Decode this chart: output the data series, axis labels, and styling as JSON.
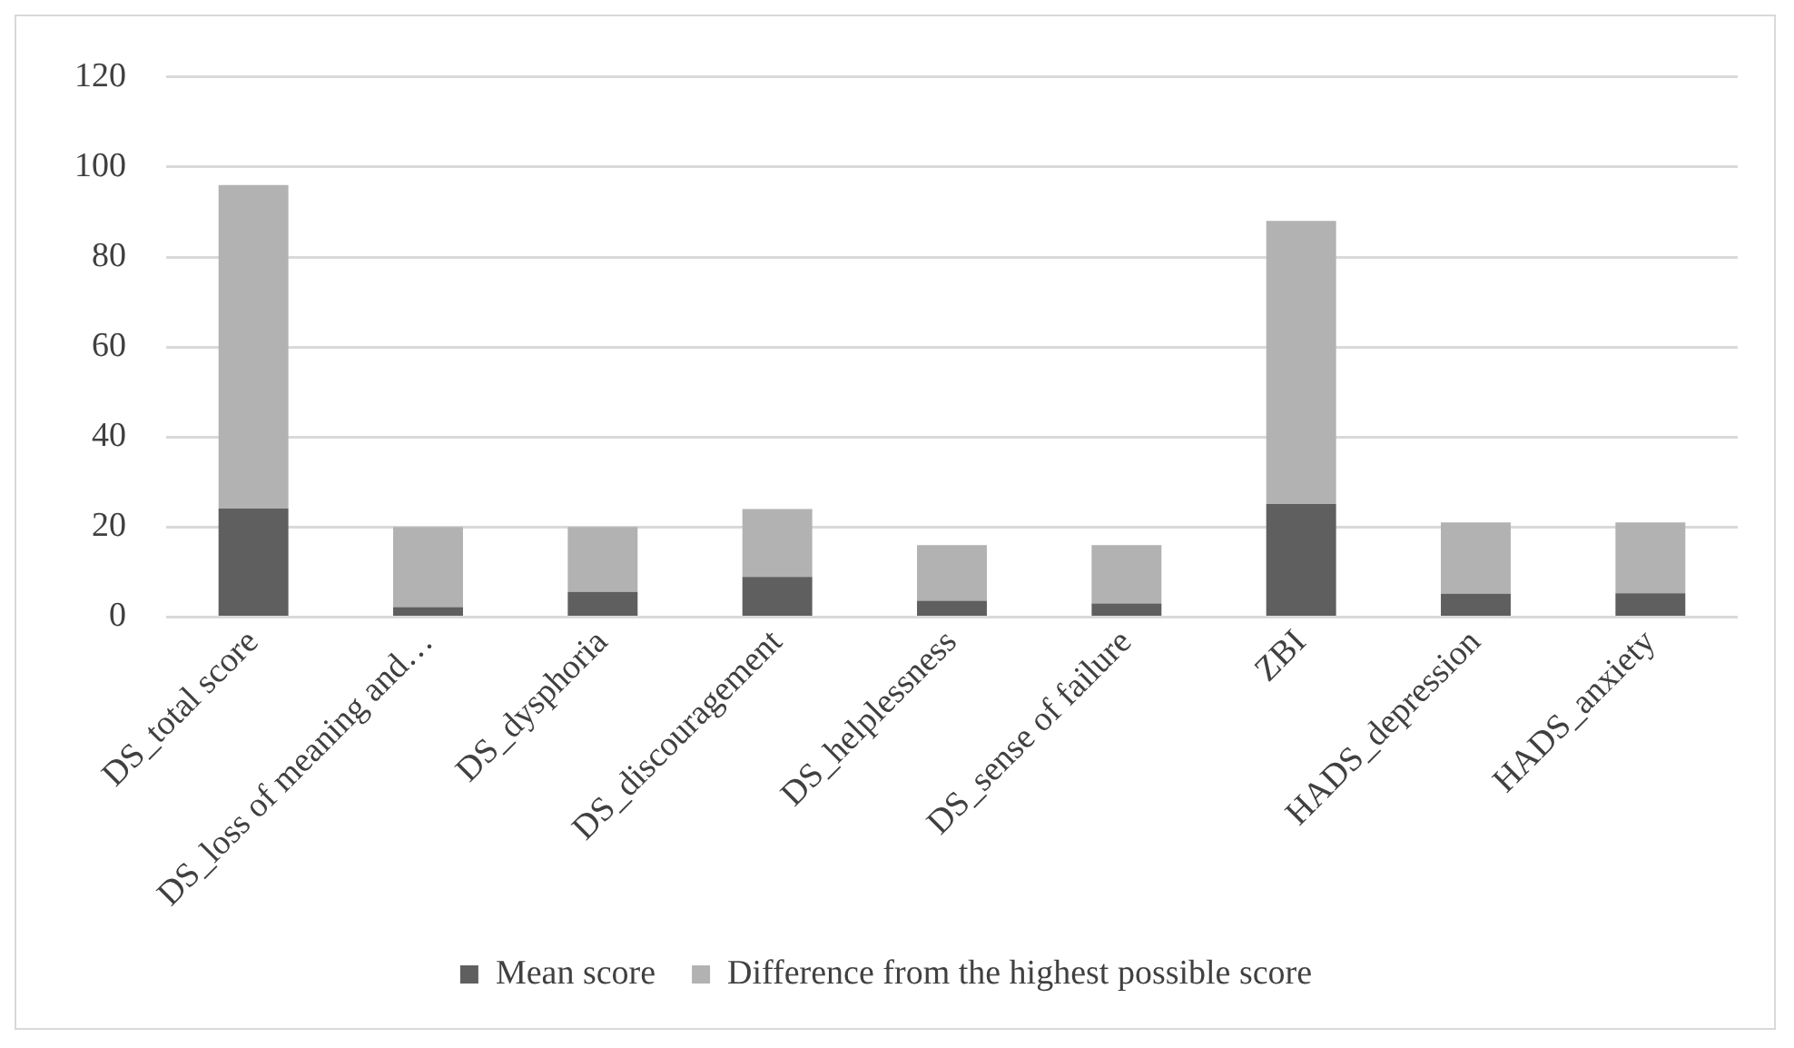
{
  "chart_data": {
    "type": "bar",
    "stacked": true,
    "categories": [
      "DS_total score",
      "DS_loss of meaning and…",
      "DS_dysphoria",
      "DS_discouragement",
      "DS_helplessness",
      "DS_sense of failure",
      "ZBI",
      "HADS_depression",
      "HADS_anxiety"
    ],
    "series": [
      {
        "name": "Mean score",
        "color": "#5f5f5f",
        "values": [
          24.1,
          2.2,
          5.6,
          8.9,
          3.6,
          3.0,
          25.1,
          5.2,
          5.3
        ]
      },
      {
        "name": "Difference from the highest possible score",
        "color": "#b2b2b2",
        "values": [
          71.9,
          17.8,
          14.4,
          15.1,
          12.4,
          13.0,
          62.9,
          15.8,
          15.7
        ]
      }
    ],
    "ylim": [
      0,
      120
    ],
    "yticks": [
      0,
      20,
      40,
      60,
      80,
      100,
      120
    ],
    "grid": "y",
    "legend": "bottom"
  }
}
